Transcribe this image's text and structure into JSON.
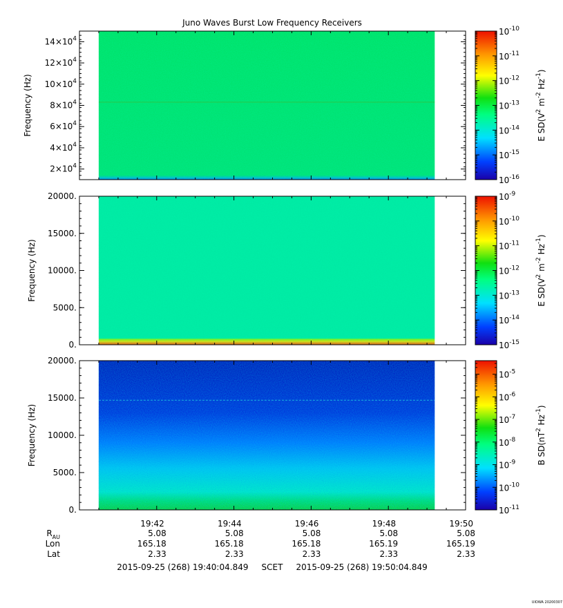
{
  "title": "Juno Waves Burst Low Frequency Receivers",
  "footer": {
    "time_range": "2015-09-25 (268) 19:40:04.849     SCET     2015-09-25 (268) 19:50:04.849",
    "stamp": "UIOWA 20200307"
  },
  "ephemeris": {
    "labels": [
      {
        "main": "R",
        "sub": "AU"
      },
      {
        "main": "Lon",
        "sub": ""
      },
      {
        "main": "Lat",
        "sub": ""
      }
    ],
    "rows": [
      [
        "5.08",
        "5.08",
        "5.08",
        "5.08",
        "5.08"
      ],
      [
        "165.18",
        "165.18",
        "165.18",
        "165.19",
        "165.19"
      ],
      [
        "2.33",
        "2.33",
        "2.33",
        "2.33",
        "2.33"
      ]
    ]
  },
  "chart_data": [
    {
      "type": "heatmap",
      "ylabel": "Frequency (Hz)",
      "ylim": [
        10000,
        150000
      ],
      "y_ticks": [
        {
          "value": 20000,
          "mantissa": "2",
          "exp": "4"
        },
        {
          "value": 40000,
          "mantissa": "4",
          "exp": "4"
        },
        {
          "value": 60000,
          "mantissa": "6",
          "exp": "4"
        },
        {
          "value": 80000,
          "mantissa": "8",
          "exp": "4"
        },
        {
          "value": 100000,
          "mantissa": "10",
          "exp": "4"
        },
        {
          "value": 120000,
          "mantissa": "12",
          "exp": "4"
        },
        {
          "value": 140000,
          "mantissa": "14",
          "exp": "4"
        }
      ],
      "x_ticks": [
        "19:42",
        "19:44",
        "19:46",
        "19:48",
        "19:50"
      ],
      "x_tick_minutes": [
        2,
        4,
        6,
        8,
        10
      ],
      "xlim_minutes": [
        0,
        10
      ],
      "data_extent_minutes": [
        0.5,
        9.2
      ],
      "colorbar": {
        "label": "E SD (V2 m-2 Hz-1)",
        "label_parts": [
          [
            "E SD(V",
            ""
          ],
          [
            "2",
            "sup"
          ],
          [
            " m",
            ""
          ],
          [
            "-2",
            "sup"
          ],
          [
            " Hz",
            ""
          ],
          [
            "-1",
            "sup"
          ],
          [
            ")",
            ""
          ]
        ],
        "log_range": [
          -16,
          -10
        ],
        "tick_exponents": [
          "-10",
          "-11",
          "-12",
          "-13",
          "-14",
          "-15",
          "-16"
        ]
      },
      "features": "uniform green background (~1e-13), faint line near 8.3e4 Hz, cyan/blue band at lowest frequencies"
    },
    {
      "type": "heatmap",
      "ylabel": "Frequency (Hz)",
      "ylim": [
        0,
        20000
      ],
      "y_ticks": [
        {
          "value": 0,
          "label": "0."
        },
        {
          "value": 5000,
          "label": "5000."
        },
        {
          "value": 10000,
          "label": "10000."
        },
        {
          "value": 15000,
          "label": "15000."
        },
        {
          "value": 20000,
          "label": "20000."
        }
      ],
      "x_ticks": [
        "19:42",
        "19:44",
        "19:46",
        "19:48",
        "19:50"
      ],
      "x_tick_minutes": [
        2,
        4,
        6,
        8,
        10
      ],
      "xlim_minutes": [
        0,
        10
      ],
      "data_extent_minutes": [
        0.5,
        9.2
      ],
      "colorbar": {
        "label": "E SD (V2 m-2 Hz-1)",
        "label_parts": [
          [
            "E SD(V",
            ""
          ],
          [
            "2",
            "sup"
          ],
          [
            " m",
            ""
          ],
          [
            "-2",
            "sup"
          ],
          [
            " Hz",
            ""
          ],
          [
            "-1",
            "sup"
          ],
          [
            ")",
            ""
          ]
        ],
        "log_range": [
          -15,
          -9
        ],
        "tick_exponents": [
          "-9",
          "-10",
          "-11",
          "-12",
          "-13",
          "-14",
          "-15"
        ]
      },
      "features": "uniform cyan-green background (~1e-13), bright yellow/orange band below ~500 Hz"
    },
    {
      "type": "heatmap",
      "ylabel": "Frequency (Hz)",
      "ylim": [
        0,
        20000
      ],
      "y_ticks": [
        {
          "value": 0,
          "label": "0."
        },
        {
          "value": 5000,
          "label": "5000."
        },
        {
          "value": 10000,
          "label": "10000."
        },
        {
          "value": 15000,
          "label": "15000."
        },
        {
          "value": 20000,
          "label": "20000."
        }
      ],
      "x_ticks": [
        "19:42",
        "19:44",
        "19:46",
        "19:48",
        "19:50"
      ],
      "x_tick_minutes": [
        2,
        4,
        6,
        8,
        10
      ],
      "xlim_minutes": [
        0,
        10
      ],
      "data_extent_minutes": [
        0.5,
        9.2
      ],
      "colorbar": {
        "label": "B SD (nT2 Hz-1)",
        "label_parts": [
          [
            "B SD(nT",
            ""
          ],
          [
            "2",
            "sup"
          ],
          [
            " Hz",
            ""
          ],
          [
            "-1",
            "sup"
          ],
          [
            ")",
            ""
          ]
        ],
        "log_range": [
          -11,
          -4.4
        ],
        "tick_exponents": [
          "-5",
          "-6",
          "-7",
          "-8",
          "-9",
          "-10",
          "-11"
        ],
        "tick_values": [
          -5,
          -6,
          -7,
          -8,
          -9,
          -10,
          -11
        ]
      },
      "features": "dark blue at high frequencies grading to cyan and green below ~2000 Hz, faint line near 14700 Hz"
    }
  ]
}
